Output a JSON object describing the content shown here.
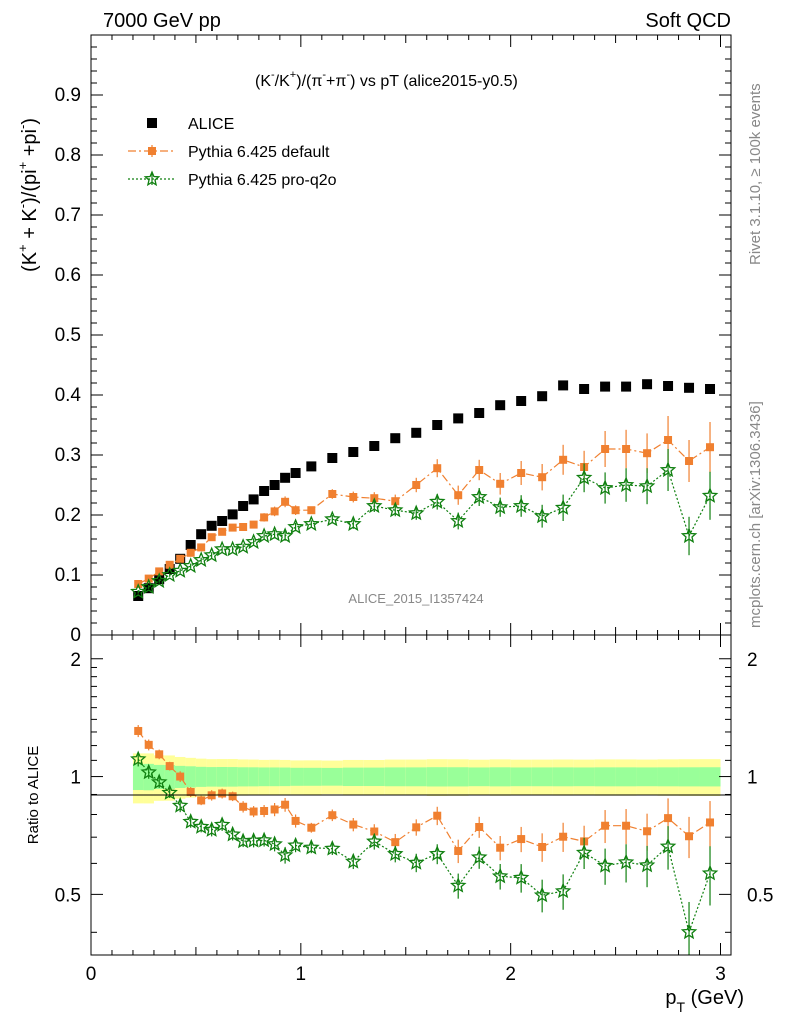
{
  "header": {
    "left": "7000 GeV pp",
    "right": "Soft QCD"
  },
  "side": {
    "rivet": "Rivet 3.1.10, ≥ 100k events",
    "mcplots": "mcplots.cern.ch [arXiv:1306.3436]"
  },
  "watermark": "ALICE_2015_I1357424",
  "chart_data": {
    "type": "scatter",
    "title_parts": [
      "(K",
      "-",
      "/K",
      "+",
      ")/(π",
      "-",
      "+π",
      "-",
      ") vs pT (alice2015-y0.5)"
    ],
    "ylabel_parts": [
      "(K",
      "+",
      " + K",
      "-",
      ")/(pi",
      "+",
      " +pi",
      "-",
      ")"
    ],
    "xlabel_parts": [
      "p",
      "T",
      " (GeV)"
    ],
    "ratio_ylabel": "Ratio to ALICE",
    "xlim": [
      0,
      3.05
    ],
    "ylim": [
      0,
      1.0
    ],
    "ratio_ylim": [
      0.35,
      2.3
    ],
    "xticks": [
      0,
      1,
      2,
      3
    ],
    "yticks": [
      0,
      0.1,
      0.2,
      0.3,
      0.4,
      0.5,
      0.6,
      0.7,
      0.8,
      0.9
    ],
    "ytick_labels": [
      "0",
      "0.1",
      "0.2",
      "0.3",
      "0.4",
      "0.5",
      "0.6",
      "0.7",
      "0.8",
      "0.9"
    ],
    "ratio_yticks": [
      0.5,
      1,
      2
    ],
    "ratio_ytick_labels": [
      "0.5",
      "1",
      "2"
    ],
    "legend_position": "top-left",
    "x": [
      0.225,
      0.275,
      0.325,
      0.375,
      0.425,
      0.475,
      0.525,
      0.575,
      0.625,
      0.675,
      0.725,
      0.775,
      0.825,
      0.875,
      0.925,
      0.975,
      1.05,
      1.15,
      1.25,
      1.35,
      1.45,
      1.55,
      1.65,
      1.75,
      1.85,
      1.95,
      2.05,
      2.15,
      2.25,
      2.35,
      2.45,
      2.55,
      2.65,
      2.75,
      2.85,
      2.95
    ],
    "series": [
      {
        "name": "ALICE",
        "color": "#000000",
        "marker": "square",
        "values": [
          0.065,
          0.078,
          0.093,
          0.11,
          0.127,
          0.15,
          0.168,
          0.182,
          0.19,
          0.201,
          0.215,
          0.226,
          0.24,
          0.25,
          0.262,
          0.27,
          0.281,
          0.295,
          0.305,
          0.315,
          0.328,
          0.337,
          0.35,
          0.361,
          0.37,
          0.383,
          0.39,
          0.398,
          0.416,
          0.41,
          0.414,
          0.414,
          0.418,
          0.415,
          0.412,
          0.41
        ],
        "err": [
          0.003,
          0.003,
          0.003,
          0.004,
          0.004,
          0.004,
          0.005,
          0.005,
          0.005,
          0.006,
          0.006,
          0.006,
          0.006,
          0.007,
          0.007,
          0.007,
          0.008,
          0.008,
          0.009,
          0.009,
          0.01,
          0.01,
          0.011,
          0.011,
          0.011,
          0.012,
          0.012,
          0.012,
          0.013,
          0.013,
          0.013,
          0.013,
          0.013,
          0.014,
          0.014,
          0.014
        ],
        "syserr": [
          0.009,
          0.011,
          0.012,
          0.014,
          0.015,
          0.017,
          0.018,
          0.019,
          0.02,
          0.021,
          0.022,
          0.023,
          0.024,
          0.025,
          0.026,
          0.026,
          0.027,
          0.028,
          0.03,
          0.031,
          0.033,
          0.034,
          0.036,
          0.037,
          0.037,
          0.039,
          0.039,
          0.04,
          0.042,
          0.041,
          0.042,
          0.042,
          0.042,
          0.042,
          0.042,
          0.042
        ]
      },
      {
        "name": "Pythia 6.425 default",
        "color": "#f08030",
        "marker": "square",
        "line": "dashdot",
        "values": [
          0.085,
          0.094,
          0.106,
          0.117,
          0.127,
          0.137,
          0.146,
          0.163,
          0.172,
          0.179,
          0.18,
          0.184,
          0.196,
          0.206,
          0.222,
          0.208,
          0.208,
          0.235,
          0.23,
          0.228,
          0.223,
          0.25,
          0.278,
          0.233,
          0.275,
          0.252,
          0.27,
          0.263,
          0.292,
          0.28,
          0.31,
          0.31,
          0.303,
          0.325,
          0.29,
          0.313
        ],
        "err": [
          0.003,
          0.003,
          0.003,
          0.003,
          0.004,
          0.004,
          0.004,
          0.005,
          0.005,
          0.005,
          0.006,
          0.006,
          0.007,
          0.008,
          0.009,
          0.008,
          0.006,
          0.008,
          0.009,
          0.01,
          0.011,
          0.012,
          0.015,
          0.016,
          0.017,
          0.018,
          0.02,
          0.022,
          0.025,
          0.027,
          0.03,
          0.032,
          0.033,
          0.04,
          0.035,
          0.042
        ]
      },
      {
        "name": "Pythia 6.425 pro-q2o",
        "color": "#108010",
        "marker": "star",
        "line": "dotted",
        "values": [
          0.072,
          0.08,
          0.09,
          0.1,
          0.107,
          0.115,
          0.125,
          0.133,
          0.143,
          0.143,
          0.147,
          0.155,
          0.165,
          0.168,
          0.165,
          0.18,
          0.185,
          0.193,
          0.185,
          0.215,
          0.208,
          0.203,
          0.222,
          0.19,
          0.23,
          0.213,
          0.215,
          0.198,
          0.212,
          0.262,
          0.245,
          0.25,
          0.248,
          0.275,
          0.165,
          0.232
        ],
        "err": [
          0.003,
          0.003,
          0.003,
          0.003,
          0.004,
          0.004,
          0.004,
          0.005,
          0.005,
          0.005,
          0.005,
          0.006,
          0.006,
          0.007,
          0.008,
          0.007,
          0.006,
          0.007,
          0.008,
          0.01,
          0.01,
          0.011,
          0.013,
          0.014,
          0.015,
          0.016,
          0.018,
          0.019,
          0.022,
          0.024,
          0.026,
          0.028,
          0.03,
          0.035,
          0.032,
          0.04
        ]
      }
    ]
  }
}
